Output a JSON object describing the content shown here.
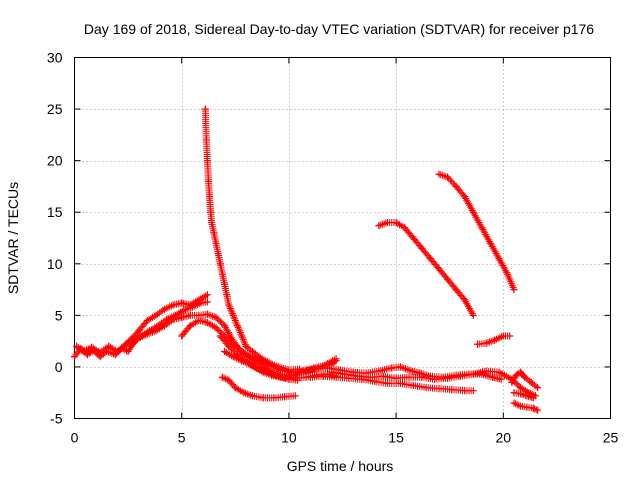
{
  "chart_data": {
    "type": "scatter",
    "title": "Day 169 of 2018, Sidereal Day-to-day VTEC variation (SDTVAR) for receiver p176",
    "xlabel": "GPS time / hours",
    "ylabel": "SDTVAR / TECUs",
    "xlim": [
      0,
      25
    ],
    "ylim": [
      -5,
      30
    ],
    "xticks": [
      0,
      5,
      10,
      15,
      20,
      25
    ],
    "yticks": [
      -5,
      0,
      5,
      10,
      15,
      20,
      25,
      30
    ],
    "grid": true,
    "marker": "+",
    "marker_color": "#ff0000",
    "series": [
      {
        "name": "SDTVAR",
        "segments": [
          [
            [
              0.0,
              1.0
            ],
            [
              0.3,
              1.8
            ],
            [
              0.6,
              1.2
            ],
            [
              0.9,
              1.6
            ],
            [
              1.2,
              1.0
            ],
            [
              1.5,
              1.5
            ],
            [
              1.9,
              1.2
            ],
            [
              2.2,
              1.8
            ],
            [
              2.5,
              1.5
            ],
            [
              2.8,
              2.5
            ],
            [
              3.1,
              3.0
            ],
            [
              3.5,
              3.5
            ],
            [
              3.9,
              4.0
            ],
            [
              4.3,
              4.6
            ],
            [
              4.7,
              5.0
            ],
            [
              5.1,
              5.5
            ],
            [
              5.5,
              5.8
            ],
            [
              5.9,
              6.2
            ],
            [
              6.2,
              6.3
            ]
          ],
          [
            [
              0.1,
              2.0
            ],
            [
              0.4,
              1.5
            ],
            [
              0.8,
              1.9
            ],
            [
              1.2,
              1.4
            ],
            [
              1.6,
              2.0
            ],
            [
              2.0,
              1.5
            ],
            [
              2.4,
              2.2
            ],
            [
              2.7,
              2.8
            ],
            [
              3.0,
              3.5
            ],
            [
              3.4,
              4.5
            ],
            [
              3.8,
              5.0
            ],
            [
              4.2,
              5.6
            ],
            [
              4.6,
              6.0
            ],
            [
              5.0,
              6.2
            ],
            [
              5.4,
              6.0
            ],
            [
              5.8,
              6.5
            ],
            [
              6.2,
              7.0
            ]
          ],
          [
            [
              2.6,
              2.0
            ],
            [
              3.0,
              2.8
            ],
            [
              3.4,
              3.2
            ],
            [
              3.8,
              3.5
            ],
            [
              4.2,
              4.0
            ],
            [
              4.6,
              4.6
            ],
            [
              5.0,
              4.8
            ],
            [
              5.4,
              5.0
            ],
            [
              5.8,
              5.0
            ],
            [
              6.2,
              5.1
            ],
            [
              6.6,
              4.8
            ],
            [
              7.0,
              4.0
            ],
            [
              7.4,
              2.5
            ],
            [
              7.8,
              1.5
            ],
            [
              8.3,
              0.7
            ],
            [
              8.8,
              0.0
            ],
            [
              9.3,
              -0.6
            ],
            [
              9.8,
              -1.0
            ],
            [
              10.3,
              -1.1
            ],
            [
              10.8,
              -1.0
            ],
            [
              11.3,
              -0.8
            ],
            [
              11.8,
              -0.7
            ],
            [
              12.2,
              -0.9
            ]
          ],
          [
            [
              5.0,
              3.0
            ],
            [
              5.4,
              4.0
            ],
            [
              5.8,
              4.5
            ],
            [
              6.2,
              4.3
            ],
            [
              6.6,
              3.8
            ],
            [
              7.0,
              3.0
            ],
            [
              7.4,
              2.2
            ],
            [
              7.8,
              1.5
            ],
            [
              8.4,
              0.8
            ],
            [
              9.0,
              0.3
            ],
            [
              9.6,
              -0.3
            ],
            [
              10.2,
              -0.5
            ],
            [
              10.8,
              -0.3
            ],
            [
              11.4,
              0.0
            ],
            [
              12.0,
              0.3
            ],
            [
              12.2,
              0.6
            ]
          ],
          [
            [
              6.1,
              25.0
            ],
            [
              6.15,
              22.0
            ],
            [
              6.2,
              20.0
            ],
            [
              6.25,
              18.0
            ],
            [
              6.3,
              16.5
            ],
            [
              6.35,
              15.0
            ],
            [
              6.4,
              14.0
            ],
            [
              6.5,
              13.0
            ],
            [
              6.6,
              12.0
            ],
            [
              6.7,
              11.0
            ],
            [
              6.8,
              10.0
            ],
            [
              6.9,
              9.0
            ],
            [
              7.0,
              8.0
            ],
            [
              7.1,
              7.0
            ],
            [
              7.2,
              6.0
            ],
            [
              7.4,
              5.0
            ],
            [
              7.6,
              4.0
            ],
            [
              7.8,
              3.0
            ],
            [
              8.0,
              2.0
            ],
            [
              8.3,
              1.5
            ],
            [
              8.6,
              1.0
            ],
            [
              9.0,
              0.5
            ],
            [
              9.5,
              0.0
            ],
            [
              10.0,
              -0.3
            ],
            [
              10.5,
              -0.2
            ]
          ],
          [
            [
              7.0,
              1.5
            ],
            [
              7.4,
              1.0
            ],
            [
              7.8,
              0.6
            ],
            [
              8.2,
              0.2
            ],
            [
              8.6,
              -0.2
            ],
            [
              9.0,
              -0.5
            ],
            [
              9.4,
              -0.8
            ],
            [
              9.8,
              -1.0
            ],
            [
              10.2,
              -0.8
            ],
            [
              10.6,
              -0.5
            ],
            [
              11.0,
              -0.3
            ],
            [
              11.4,
              -0.1
            ],
            [
              11.8,
              0.3
            ],
            [
              12.2,
              0.8
            ]
          ],
          [
            [
              6.8,
              3.0
            ],
            [
              7.2,
              2.0
            ],
            [
              7.6,
              1.2
            ],
            [
              8.0,
              0.6
            ],
            [
              8.4,
              0.0
            ],
            [
              8.8,
              -0.5
            ],
            [
              9.2,
              -0.8
            ],
            [
              9.6,
              -1.0
            ],
            [
              10.0,
              -1.2
            ],
            [
              10.4,
              -1.3
            ]
          ],
          [
            [
              6.9,
              -1.0
            ],
            [
              7.2,
              -1.3
            ],
            [
              7.5,
              -2.0
            ],
            [
              7.9,
              -2.5
            ],
            [
              8.3,
              -2.8
            ],
            [
              8.8,
              -3.0
            ],
            [
              9.3,
              -3.0
            ],
            [
              9.8,
              -2.9
            ],
            [
              10.3,
              -2.8
            ]
          ],
          [
            [
              10.0,
              -0.5
            ],
            [
              10.6,
              -0.5
            ],
            [
              11.2,
              -0.2
            ],
            [
              11.8,
              -0.1
            ],
            [
              12.4,
              -0.3
            ],
            [
              13.0,
              -0.5
            ],
            [
              13.6,
              -0.6
            ],
            [
              14.2,
              -0.4
            ],
            [
              14.8,
              -0.1
            ],
            [
              15.2,
              0.0
            ],
            [
              15.6,
              -0.3
            ],
            [
              16.1,
              -0.6
            ],
            [
              16.6,
              -0.9
            ],
            [
              17.2,
              -1.0
            ],
            [
              17.8,
              -0.8
            ],
            [
              18.4,
              -0.7
            ],
            [
              19.0,
              -0.7
            ],
            [
              19.5,
              -1.0
            ],
            [
              19.9,
              -1.2
            ]
          ],
          [
            [
              11.0,
              -1.0
            ],
            [
              11.6,
              -0.9
            ],
            [
              12.2,
              -1.0
            ],
            [
              12.8,
              -1.1
            ],
            [
              13.4,
              -1.2
            ],
            [
              14.0,
              -1.4
            ],
            [
              14.6,
              -1.6
            ],
            [
              15.2,
              -1.6
            ],
            [
              15.8,
              -1.8
            ],
            [
              16.4,
              -2.0
            ],
            [
              17.0,
              -2.1
            ],
            [
              17.6,
              -2.2
            ],
            [
              18.2,
              -2.3
            ],
            [
              18.6,
              -2.3
            ]
          ],
          [
            [
              12.0,
              -0.5
            ],
            [
              12.6,
              -0.7
            ],
            [
              13.2,
              -0.9
            ],
            [
              13.8,
              -1.0
            ],
            [
              14.4,
              -0.9
            ],
            [
              15.0,
              -1.1
            ],
            [
              15.6,
              -1.0
            ],
            [
              16.2,
              -1.0
            ],
            [
              16.8,
              -1.2
            ],
            [
              17.4,
              -1.1
            ],
            [
              18.0,
              -0.9
            ],
            [
              18.6,
              -0.7
            ],
            [
              19.2,
              -0.4
            ],
            [
              19.8,
              -0.5
            ],
            [
              20.4,
              -1.2
            ],
            [
              20.8,
              -2.0
            ],
            [
              21.2,
              -2.5
            ],
            [
              21.5,
              -2.8
            ]
          ],
          [
            [
              14.2,
              13.7
            ],
            [
              14.6,
              14.0
            ],
            [
              15.0,
              14.0
            ],
            [
              15.4,
              13.5
            ],
            [
              15.8,
              12.5
            ],
            [
              16.2,
              11.5
            ],
            [
              16.6,
              10.5
            ],
            [
              17.0,
              9.5
            ],
            [
              17.4,
              8.5
            ],
            [
              17.8,
              7.5
            ],
            [
              18.2,
              6.5
            ],
            [
              18.6,
              5.0
            ]
          ],
          [
            [
              17.0,
              18.7
            ],
            [
              17.4,
              18.4
            ],
            [
              17.8,
              17.5
            ],
            [
              18.2,
              16.5
            ],
            [
              18.6,
              15.0
            ],
            [
              19.0,
              13.5
            ],
            [
              19.4,
              12.0
            ],
            [
              19.8,
              10.5
            ],
            [
              20.2,
              9.0
            ],
            [
              20.5,
              7.5
            ]
          ],
          [
            [
              18.8,
              2.2
            ],
            [
              19.2,
              2.3
            ],
            [
              19.6,
              2.6
            ],
            [
              20.0,
              3.0
            ],
            [
              20.3,
              3.0
            ]
          ],
          [
            [
              20.4,
              -1.5
            ],
            [
              20.6,
              -0.8
            ],
            [
              20.8,
              -0.5
            ],
            [
              21.0,
              -1.0
            ],
            [
              21.3,
              -1.5
            ],
            [
              21.6,
              -2.0
            ]
          ],
          [
            [
              20.5,
              -3.5
            ],
            [
              20.8,
              -3.8
            ],
            [
              21.1,
              -3.9
            ],
            [
              21.4,
              -4.0
            ],
            [
              21.6,
              -4.2
            ]
          ],
          [
            [
              20.5,
              -2.5
            ],
            [
              20.8,
              -2.6
            ],
            [
              21.1,
              -2.8
            ],
            [
              21.4,
              -3.0
            ]
          ]
        ]
      }
    ]
  }
}
